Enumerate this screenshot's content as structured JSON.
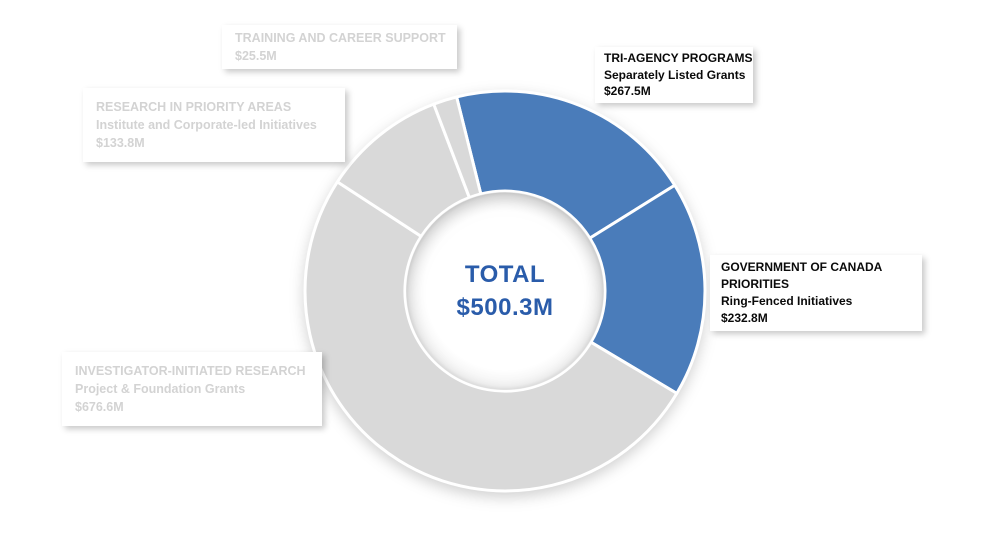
{
  "colors": {
    "accent_blue": "#4A7CBA",
    "neutral_gray": "#D9D9D9",
    "segment_border": "#FFFFFF",
    "center_text_blue": "#2A5CAA",
    "muted_label_text": "#D3D3D3",
    "dark_label_text": "#0A0A0A"
  },
  "chart_data": {
    "type": "pie",
    "subtype": "donut",
    "title": "",
    "legend_position": "none",
    "start_angle_deg": -14,
    "clockwise": true,
    "inner_radius_ratio": 0.5,
    "center_label": {
      "line1": "TOTAL",
      "line2": "$500.3M"
    },
    "segments": [
      {
        "id": "tri-agency-programs",
        "name": "TRI-AGENCY PROGRAMS",
        "sublabel": "Separately Listed Grants",
        "value": 267.5,
        "display_value": "$267.5M",
        "color": "#4A7CBA",
        "highlighted": true
      },
      {
        "id": "government-of-canada-priorities",
        "name": "GOVERNMENT OF CANADA PRIORITIES",
        "sublabel": "Ring-Fenced Initiatives",
        "value": 232.8,
        "display_value": "$232.8M",
        "color": "#4A7CBA",
        "highlighted": true
      },
      {
        "id": "investigator-initiated-research",
        "name": "INVESTIGATOR-INITIATED RESEARCH",
        "sublabel": "Project & Foundation Grants",
        "value": 676.6,
        "display_value": "$676.6M",
        "color": "#D9D9D9",
        "highlighted": false
      },
      {
        "id": "research-in-priority-areas",
        "name": "RESEARCH IN PRIORITY AREAS",
        "sublabel": "Institute and Corporate-led Initiatives",
        "value": 133.8,
        "display_value": "$133.8M",
        "color": "#D9D9D9",
        "highlighted": false
      },
      {
        "id": "training-and-career-support",
        "name": "TRAINING AND CAREER SUPPORT",
        "sublabel": "",
        "value": 25.5,
        "display_value": "$25.5M",
        "color": "#D9D9D9",
        "highlighted": false
      }
    ]
  }
}
